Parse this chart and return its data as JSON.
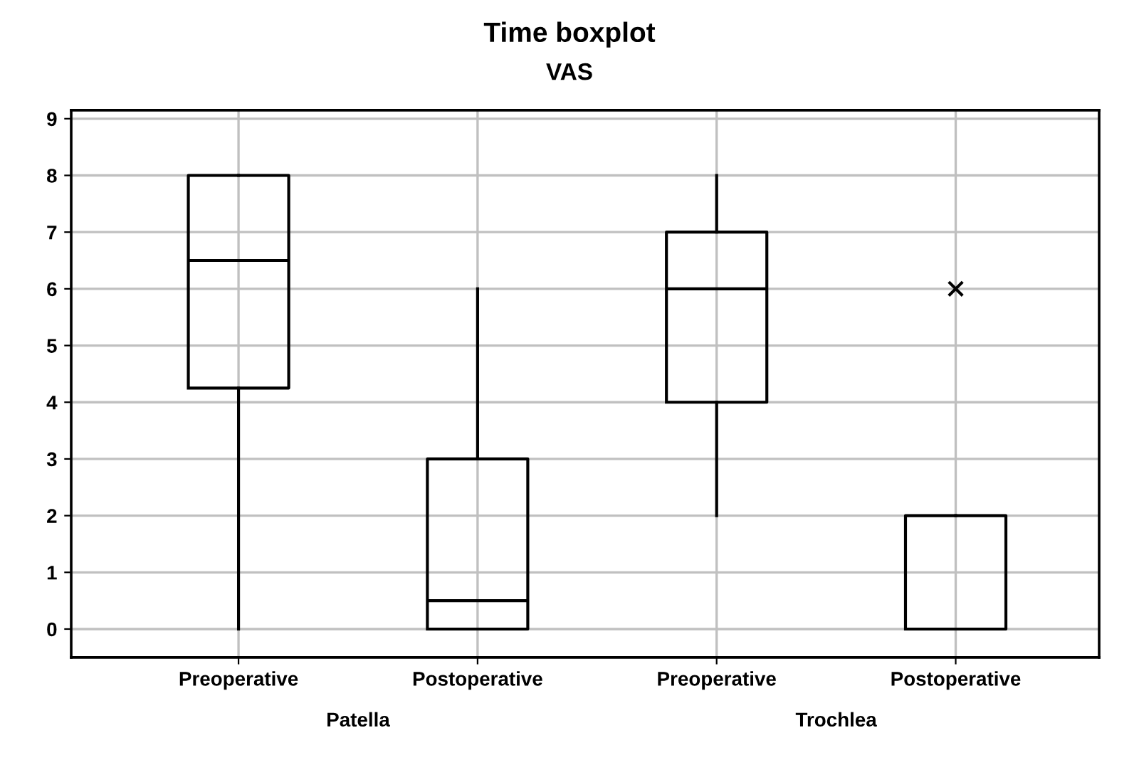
{
  "chart_data": {
    "type": "box",
    "title": "Time boxplot",
    "subtitle": "VAS",
    "categories": [
      "Preoperative",
      "Postoperative",
      "Preoperative",
      "Postoperative"
    ],
    "boxes": [
      {
        "low": 0,
        "q1": 4.25,
        "median": 6.5,
        "q3": 8,
        "high": 8
      },
      {
        "low": 0,
        "q1": 0,
        "median": 0.5,
        "q3": 3,
        "high": 6
      },
      {
        "low": 2,
        "q1": 4,
        "median": 6,
        "q3": 7,
        "high": 8
      },
      {
        "low": 0,
        "q1": 0,
        "median": 0,
        "q3": 2,
        "high": 2,
        "outliers": [
          6
        ]
      }
    ],
    "annotations": [
      "Patella",
      "Trochlea"
    ],
    "ylim": [
      -0.5,
      9.15
    ],
    "yticks": [
      0,
      1,
      2,
      3,
      4,
      5,
      6,
      7,
      8,
      9
    ],
    "grid": true,
    "marker": "cross"
  }
}
